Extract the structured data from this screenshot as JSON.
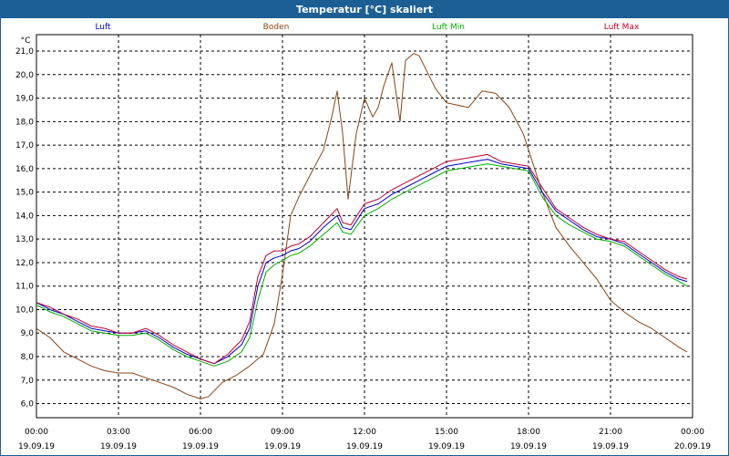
{
  "window": {
    "title": "Temperatur [°C] skaliert"
  },
  "chart_data": {
    "type": "line",
    "title": "Temperatur [°C] skaliert",
    "ylabel": "°C",
    "xlabel": "",
    "ylim": [
      5.4,
      21.7
    ],
    "yticks": [
      6.0,
      7.0,
      8.0,
      9.0,
      10.0,
      11.0,
      12.0,
      13.0,
      14.0,
      15.0,
      16.0,
      17.0,
      18.0,
      19.0,
      20.0,
      21.0
    ],
    "ytick_labels": [
      "6,0",
      "7,0",
      "8,0",
      "9,0",
      "10,0",
      "11,0",
      "12,0",
      "13,0",
      "14,0",
      "15,0",
      "16,0",
      "17,0",
      "18,0",
      "19,0",
      "20,0",
      "21,0"
    ],
    "xlim": [
      0,
      24
    ],
    "xticks": [
      0,
      3,
      6,
      9,
      12,
      15,
      18,
      21,
      24
    ],
    "xtick_time_labels": [
      "00:00",
      "03:00",
      "06:00",
      "09:00",
      "12:00",
      "15:00",
      "18:00",
      "21:00",
      "00:00"
    ],
    "xtick_date_labels": [
      "19.09.19",
      "19.09.19",
      "19.09.19",
      "19.09.19",
      "19.09.19",
      "19.09.19",
      "19.09.19",
      "19.09.19",
      "20.09.19"
    ],
    "grid": true,
    "legend_placement": "top",
    "series": [
      {
        "name": "Luft",
        "color": "#0000c8",
        "x": [
          0,
          0.5,
          1,
          1.5,
          2,
          2.5,
          3,
          3.5,
          4,
          4.5,
          5,
          5.5,
          6,
          6.5,
          7,
          7.5,
          7.8,
          8.1,
          8.4,
          8.7,
          9,
          9.3,
          9.6,
          10,
          10.5,
          11,
          11.2,
          11.5,
          12,
          12.5,
          13,
          13.5,
          14,
          14.5,
          15,
          15.5,
          16,
          16.5,
          17,
          17.5,
          18,
          18.5,
          19,
          19.5,
          20,
          20.5,
          21,
          21.5,
          22,
          22.5,
          23,
          23.5,
          23.8
        ],
        "y": [
          10.3,
          10.0,
          9.8,
          9.5,
          9.2,
          9.1,
          9.0,
          9.0,
          9.1,
          8.8,
          8.4,
          8.1,
          7.9,
          7.7,
          8.0,
          8.5,
          9.2,
          11.0,
          12.0,
          12.2,
          12.3,
          12.5,
          12.6,
          12.9,
          13.5,
          14.0,
          13.5,
          13.4,
          14.3,
          14.5,
          14.9,
          15.2,
          15.5,
          15.8,
          16.1,
          16.2,
          16.3,
          16.4,
          16.2,
          16.1,
          16.0,
          15.0,
          14.2,
          13.8,
          13.4,
          13.1,
          13.0,
          12.8,
          12.4,
          12.0,
          11.6,
          11.3,
          11.2
        ]
      },
      {
        "name": "Boden",
        "color": "#8b4513",
        "x": [
          0,
          0.5,
          1,
          1.5,
          2,
          2.5,
          3,
          3.5,
          4,
          4.5,
          5,
          5.5,
          6,
          6.3,
          6.8,
          7.3,
          7.8,
          8.3,
          8.7,
          9,
          9.3,
          9.6,
          10,
          10.5,
          10.8,
          11,
          11.2,
          11.4,
          11.7,
          12,
          12.3,
          12.5,
          12.7,
          13,
          13.3,
          13.5,
          13.8,
          14,
          14.3,
          14.6,
          15,
          15.4,
          15.8,
          16.3,
          16.8,
          17.3,
          17.8,
          18,
          18.5,
          19,
          19.5,
          20,
          20.5,
          21,
          21.5,
          22,
          22.5,
          23,
          23.5,
          23.8
        ],
        "y": [
          9.2,
          8.8,
          8.2,
          7.9,
          7.6,
          7.4,
          7.3,
          7.3,
          7.1,
          6.9,
          6.7,
          6.4,
          6.2,
          6.3,
          6.9,
          7.2,
          7.6,
          8.1,
          9.4,
          11.5,
          14.0,
          14.8,
          15.7,
          16.8,
          18.2,
          19.3,
          17.5,
          14.7,
          17.5,
          19.0,
          18.2,
          18.6,
          19.5,
          20.5,
          18.0,
          20.6,
          20.9,
          20.8,
          20.1,
          19.4,
          18.8,
          18.7,
          18.6,
          19.3,
          19.2,
          18.6,
          17.5,
          16.8,
          15.0,
          13.5,
          12.7,
          12.0,
          11.3,
          10.4,
          9.9,
          9.5,
          9.2,
          8.8,
          8.4,
          8.2
        ]
      },
      {
        "name": "Luft Min",
        "color": "#00b000",
        "x": [
          0,
          0.5,
          1,
          1.5,
          2,
          2.5,
          3,
          3.5,
          4,
          4.5,
          5,
          5.5,
          6,
          6.5,
          7,
          7.5,
          7.8,
          8.1,
          8.4,
          8.7,
          9,
          9.3,
          9.6,
          10,
          10.5,
          11,
          11.2,
          11.5,
          12,
          12.5,
          13,
          13.5,
          14,
          14.5,
          15,
          15.5,
          16,
          16.5,
          17,
          17.5,
          18,
          18.5,
          19,
          19.5,
          20,
          20.5,
          21,
          21.5,
          22,
          22.5,
          23,
          23.5,
          23.8
        ],
        "y": [
          10.2,
          9.9,
          9.7,
          9.4,
          9.1,
          9.0,
          8.9,
          8.9,
          9.0,
          8.7,
          8.3,
          8.0,
          7.8,
          7.6,
          7.8,
          8.2,
          8.8,
          10.4,
          11.6,
          11.9,
          12.1,
          12.3,
          12.4,
          12.7,
          13.2,
          13.7,
          13.3,
          13.2,
          14.0,
          14.3,
          14.7,
          15.0,
          15.3,
          15.6,
          15.9,
          16.0,
          16.1,
          16.2,
          16.1,
          16.0,
          15.9,
          14.8,
          14.0,
          13.6,
          13.3,
          13.0,
          12.9,
          12.7,
          12.3,
          11.9,
          11.5,
          11.2,
          11.0
        ]
      },
      {
        "name": "Luft Max",
        "color": "#c00030",
        "x": [
          0,
          0.5,
          1,
          1.5,
          2,
          2.5,
          3,
          3.5,
          4,
          4.5,
          5,
          5.5,
          6,
          6.5,
          7,
          7.5,
          7.8,
          8.1,
          8.4,
          8.7,
          9,
          9.3,
          9.6,
          10,
          10.5,
          11,
          11.2,
          11.5,
          12,
          12.5,
          13,
          13.5,
          14,
          14.5,
          15,
          15.5,
          16,
          16.5,
          17,
          17.5,
          18,
          18.5,
          19,
          19.5,
          20,
          20.5,
          21,
          21.5,
          22,
          22.5,
          23,
          23.5,
          23.8
        ],
        "y": [
          10.3,
          10.1,
          9.8,
          9.6,
          9.3,
          9.2,
          9.0,
          9.0,
          9.2,
          8.9,
          8.5,
          8.2,
          7.9,
          7.7,
          8.1,
          8.7,
          9.5,
          11.4,
          12.3,
          12.5,
          12.5,
          12.7,
          12.8,
          13.1,
          13.7,
          14.3,
          13.7,
          13.6,
          14.5,
          14.7,
          15.1,
          15.4,
          15.7,
          16.0,
          16.3,
          16.4,
          16.5,
          16.6,
          16.3,
          16.2,
          16.1,
          15.2,
          14.3,
          13.9,
          13.5,
          13.2,
          13.0,
          12.9,
          12.5,
          12.1,
          11.7,
          11.4,
          11.3
        ]
      }
    ]
  }
}
